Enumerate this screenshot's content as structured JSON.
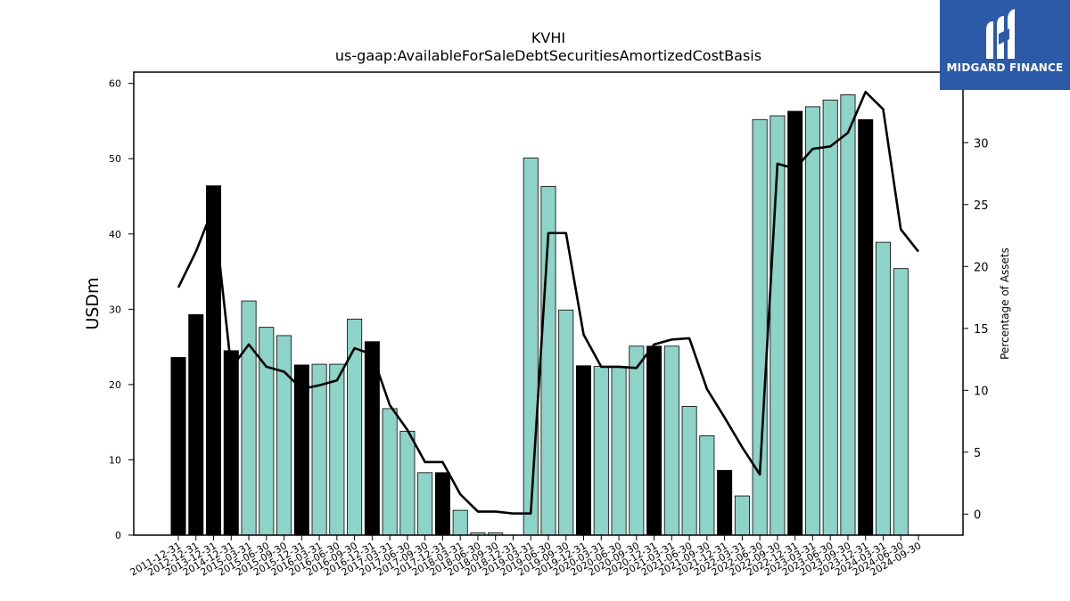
{
  "chart_data": {
    "type": "bar",
    "title": "KVHI",
    "subtitle": "us-gaap:AvailableForSaleDebtSecuritiesAmortizedCostBasis",
    "ylabel": "USDm",
    "y2label": "Percentage of Assets",
    "ylim": [
      0,
      61.5
    ],
    "y2lim": [
      -1.7,
      35.7
    ],
    "yticks": [
      0,
      10,
      20,
      30,
      40,
      50,
      60
    ],
    "y2ticks": [
      0,
      5,
      10,
      15,
      20,
      25,
      30
    ],
    "grid": false,
    "colors": {
      "annual": "#000000",
      "quarter": "#8dd3c7",
      "line": "#000000"
    },
    "categories": [
      "2011-12-31",
      "2012-12-31",
      "2013-12-31",
      "2014-12-31",
      "2015-03-31",
      "2015-06-30",
      "2015-09-30",
      "2015-12-31",
      "2016-03-31",
      "2016-06-30",
      "2016-09-30",
      "2016-12-31",
      "2017-03-31",
      "2017-06-30",
      "2017-09-30",
      "2017-12-31",
      "2018-03-31",
      "2018-06-30",
      "2018-09-30",
      "2018-12-31",
      "2019-03-31",
      "2019-06-30",
      "2019-09-30",
      "2019-12-31",
      "2020-03-31",
      "2020-06-30",
      "2020-09-30",
      "2020-12-31",
      "2021-03-31",
      "2021-06-30",
      "2021-09-30",
      "2021-12-31",
      "2022-03-31",
      "2022-06-30",
      "2022-09-30",
      "2022-12-31",
      "2023-03-31",
      "2023-06-30",
      "2023-09-30",
      "2023-12-31",
      "2024-03-31",
      "2024-06-30",
      "2024-09-30"
    ],
    "series": [
      {
        "type": "bar",
        "values": [
          23.6,
          29.3,
          46.4,
          24.5,
          31.1,
          27.6,
          26.5,
          22.6,
          22.7,
          22.7,
          28.7,
          25.7,
          16.8,
          13.8,
          8.3,
          8.3,
          3.3,
          0.3,
          0.3,
          0,
          50.1,
          46.3,
          29.9,
          22.5,
          22.4,
          22.4,
          25.1,
          25.1,
          25.1,
          17.1,
          13.2,
          8.6,
          5.2,
          55.2,
          55.7,
          56.3,
          56.9,
          57.8,
          58.5,
          55.2,
          38.9,
          35.4,
          0
        ],
        "annual": [
          true,
          true,
          true,
          true,
          false,
          false,
          false,
          true,
          false,
          false,
          false,
          true,
          false,
          false,
          false,
          true,
          false,
          false,
          false,
          true,
          false,
          false,
          false,
          true,
          false,
          false,
          false,
          true,
          false,
          false,
          false,
          true,
          false,
          false,
          false,
          true,
          false,
          false,
          false,
          true,
          false,
          false,
          false
        ]
      },
      {
        "type": "line",
        "axis": "right",
        "values": [
          18.3,
          21.2,
          24.8,
          11.8,
          13.7,
          11.9,
          11.5,
          10.1,
          10.4,
          10.8,
          13.4,
          12.9,
          8.8,
          6.8,
          4.2,
          4.2,
          1.6,
          0.2,
          0.2,
          0.05,
          0.05,
          22.7,
          22.7,
          14.5,
          11.9,
          11.9,
          11.8,
          13.7,
          14.1,
          14.2,
          10.1,
          7.8,
          5.4,
          3.2,
          28.3,
          27.9,
          29.5,
          29.7,
          30.8,
          34.1,
          32.7,
          23.0,
          21.2
        ]
      }
    ]
  },
  "logo": {
    "text": "MIDGARD FINANCE"
  }
}
